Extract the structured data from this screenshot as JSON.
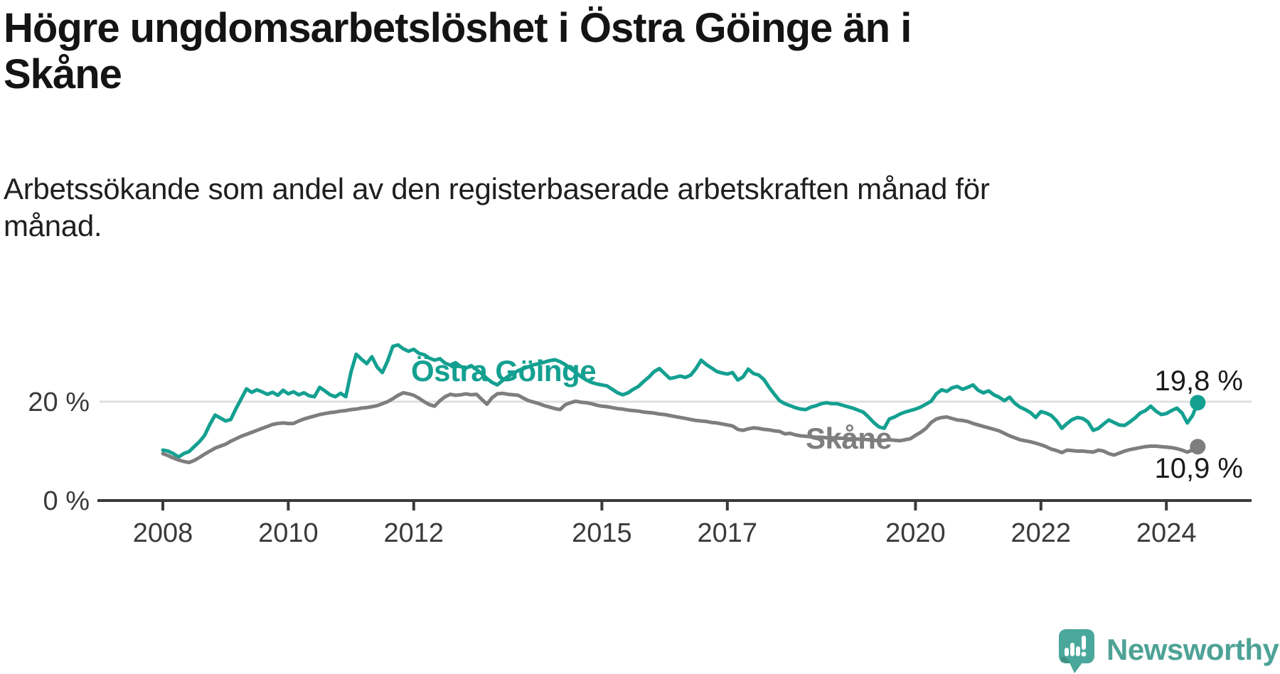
{
  "title": "Högre ungdomsarbetslöshet i Östra Göinge än i Skåne",
  "subtitle": "Arbetssökande som andel av den registerbaserade arbetskraften månad för månad.",
  "branding": {
    "logo_text": "Newsworthy",
    "logo_color": "#4EA296",
    "logo_bubble_color": "#4AA79B"
  },
  "chart_data": {
    "type": "line",
    "title": "",
    "xlabel": "",
    "ylabel": "%",
    "x_axis": {
      "ticks": [
        2008,
        2010,
        2012,
        2015,
        2017,
        2020,
        2022,
        2024
      ],
      "range": [
        2007.9,
        2025.4
      ]
    },
    "y_axis": {
      "ticks": [
        0,
        20
      ],
      "tick_labels": [
        "0 %",
        "20 %"
      ],
      "range": [
        0,
        33
      ],
      "grid_at": [
        20
      ]
    },
    "legend_position": "inline-labels",
    "colors": {
      "axis": "#3a3a3a",
      "grid": "#e0e0e0",
      "tick_text": "#3a3a3a",
      "value_text": "#1a1a1a"
    },
    "start_year": 2008.0,
    "step_months": 1,
    "series": [
      {
        "name": "Östra Göinge",
        "color": "#14A091",
        "end_label": "19,8 %",
        "end_value": 19.8,
        "values": [
          10.2,
          10.0,
          9.5,
          8.8,
          9.5,
          9.9,
          10.9,
          11.9,
          13.2,
          15.4,
          17.3,
          16.7,
          16.1,
          16.4,
          18.6,
          20.6,
          22.6,
          21.9,
          22.4,
          22.0,
          21.5,
          21.9,
          21.3,
          22.3,
          21.6,
          22.0,
          21.4,
          21.8,
          21.2,
          21.0,
          22.9,
          22.2,
          21.4,
          21.0,
          21.7,
          21.0,
          26.0,
          29.6,
          28.6,
          27.7,
          29.1,
          27.0,
          25.9,
          28.2,
          31.2,
          31.5,
          30.7,
          30.2,
          30.6,
          29.8,
          29.5,
          28.8,
          28.4,
          28.7,
          27.8,
          27.4,
          27.9,
          27.1,
          26.8,
          27.3,
          26.5,
          25.7,
          24.7,
          23.9,
          23.4,
          24.3,
          25.1,
          25.7,
          26.3,
          26.7,
          27.1,
          27.5,
          27.7,
          28.0,
          28.3,
          28.5,
          28.1,
          27.5,
          26.7,
          25.9,
          25.1,
          24.4,
          23.9,
          23.6,
          23.4,
          23.2,
          22.5,
          21.8,
          21.4,
          21.8,
          22.5,
          23.1,
          24.1,
          25.0,
          26.1,
          26.7,
          25.7,
          24.7,
          24.9,
          25.2,
          24.9,
          25.4,
          26.7,
          28.4,
          27.5,
          26.8,
          26.1,
          25.8,
          25.6,
          25.9,
          24.4,
          25.0,
          26.6,
          25.7,
          25.4,
          24.5,
          22.9,
          21.5,
          20.2,
          19.6,
          19.2,
          18.8,
          18.5,
          18.4,
          18.9,
          19.2,
          19.6,
          19.8,
          19.6,
          19.6,
          19.3,
          19.0,
          18.7,
          18.3,
          17.9,
          16.9,
          15.8,
          14.9,
          14.6,
          16.5,
          16.9,
          17.5,
          17.9,
          18.2,
          18.5,
          18.9,
          19.5,
          20.1,
          21.6,
          22.4,
          22.1,
          22.8,
          23.1,
          22.5,
          22.9,
          23.4,
          22.3,
          21.8,
          22.2,
          21.4,
          20.9,
          20.2,
          20.9,
          19.7,
          18.9,
          18.4,
          17.8,
          16.8,
          18.0,
          17.7,
          17.2,
          16.1,
          14.6,
          15.6,
          16.4,
          16.8,
          16.6,
          15.9,
          14.2,
          14.6,
          15.5,
          16.3,
          15.8,
          15.3,
          15.2,
          15.9,
          16.7,
          17.7,
          18.2,
          19.1,
          18.1,
          17.4,
          17.6,
          18.2,
          18.7,
          17.7,
          15.7,
          17.2,
          19.8
        ]
      },
      {
        "name": "Skåne",
        "color": "#7E7E7E",
        "end_label": "10,9 %",
        "end_value": 10.9,
        "values": [
          9.5,
          9.1,
          8.6,
          8.2,
          7.9,
          7.7,
          8.1,
          8.7,
          9.4,
          10.0,
          10.6,
          11.0,
          11.4,
          12.0,
          12.5,
          13.0,
          13.4,
          13.8,
          14.2,
          14.6,
          15.0,
          15.4,
          15.6,
          15.7,
          15.6,
          15.6,
          16.1,
          16.5,
          16.8,
          17.1,
          17.4,
          17.6,
          17.8,
          17.9,
          18.1,
          18.2,
          18.4,
          18.5,
          18.7,
          18.8,
          19.0,
          19.2,
          19.6,
          20.0,
          20.6,
          21.3,
          21.8,
          21.6,
          21.3,
          20.7,
          20.0,
          19.4,
          19.1,
          20.2,
          21.0,
          21.5,
          21.3,
          21.4,
          21.6,
          21.4,
          21.5,
          20.5,
          19.5,
          20.8,
          21.6,
          21.7,
          21.5,
          21.4,
          21.3,
          20.7,
          20.2,
          19.9,
          19.6,
          19.2,
          18.9,
          18.6,
          18.4,
          19.4,
          19.8,
          20.1,
          19.9,
          19.8,
          19.6,
          19.3,
          19.1,
          19.0,
          18.8,
          18.6,
          18.5,
          18.3,
          18.2,
          18.1,
          17.9,
          17.8,
          17.7,
          17.5,
          17.4,
          17.2,
          17.0,
          16.8,
          16.6,
          16.4,
          16.2,
          16.1,
          16.0,
          15.8,
          15.7,
          15.5,
          15.3,
          15.1,
          14.4,
          14.2,
          14.5,
          14.7,
          14.6,
          14.4,
          14.3,
          14.1,
          14.0,
          13.5,
          13.6,
          13.3,
          13.1,
          13.0,
          12.9,
          12.8,
          12.8,
          12.7,
          12.7,
          12.6,
          12.6,
          12.5,
          12.5,
          12.4,
          12.4,
          12.3,
          12.2,
          12.1,
          12.2,
          12.3,
          12.2,
          12.1,
          12.3,
          12.5,
          13.2,
          13.8,
          14.6,
          15.8,
          16.5,
          16.8,
          16.9,
          16.6,
          16.3,
          16.2,
          16.0,
          15.6,
          15.3,
          15.0,
          14.7,
          14.4,
          14.1,
          13.6,
          13.1,
          12.7,
          12.3,
          12.1,
          11.9,
          11.6,
          11.3,
          10.9,
          10.4,
          10.1,
          9.7,
          10.2,
          10.1,
          10.0,
          10.0,
          9.9,
          9.8,
          10.2,
          10.0,
          9.5,
          9.2,
          9.6,
          10.0,
          10.3,
          10.5,
          10.7,
          10.9,
          11.0,
          11.0,
          10.9,
          10.8,
          10.7,
          10.5,
          10.2,
          9.8,
          10.2,
          10.9
        ]
      }
    ]
  }
}
